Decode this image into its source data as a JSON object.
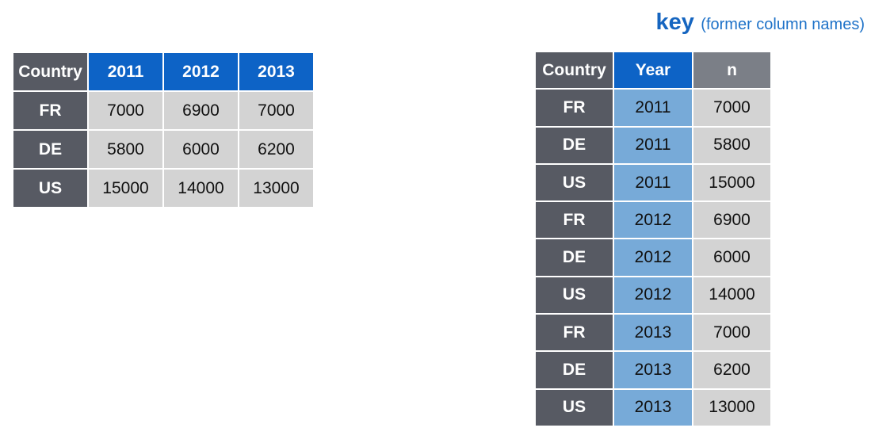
{
  "key_title": {
    "word": "key",
    "note": "(former column names)"
  },
  "wide_table": {
    "headers": [
      "Country",
      "2011",
      "2012",
      "2013"
    ],
    "rows": [
      {
        "country": "FR",
        "values": [
          "7000",
          "6900",
          "7000"
        ]
      },
      {
        "country": "DE",
        "values": [
          "5800",
          "6000",
          "6200"
        ]
      },
      {
        "country": "US",
        "values": [
          "15000",
          "14000",
          "13000"
        ]
      }
    ]
  },
  "long_table": {
    "headers": [
      "Country",
      "Year",
      "n"
    ],
    "rows": [
      {
        "country": "FR",
        "year": "2011",
        "n": "7000"
      },
      {
        "country": "DE",
        "year": "2011",
        "n": "5800"
      },
      {
        "country": "US",
        "year": "2011",
        "n": "15000"
      },
      {
        "country": "FR",
        "year": "2012",
        "n": "6900"
      },
      {
        "country": "DE",
        "year": "2012",
        "n": "6000"
      },
      {
        "country": "US",
        "year": "2012",
        "n": "14000"
      },
      {
        "country": "FR",
        "year": "2013",
        "n": "7000"
      },
      {
        "country": "DE",
        "year": "2013",
        "n": "6200"
      },
      {
        "country": "US",
        "year": "2013",
        "n": "13000"
      }
    ]
  },
  "colors": {
    "header_dark": "#575a63",
    "header_blue": "#0d63c6",
    "header_grey": "#7b7f87",
    "value_cell": "#d3d3d3",
    "year_cell": "#77aad8",
    "key_text": "#1565c0"
  }
}
